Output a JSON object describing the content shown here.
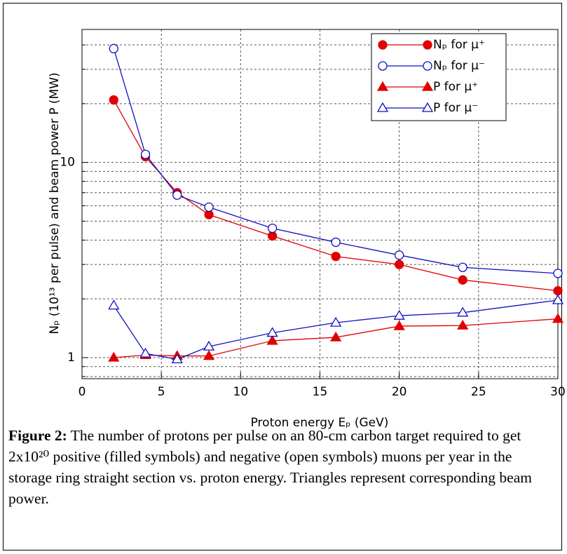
{
  "chart_data": {
    "type": "line",
    "x_label": "Proton energy Eₚ (GeV)",
    "y_label": "Nₚ (10¹³ per pulse) and beam power P (MW)",
    "x": [
      2,
      4,
      6,
      8,
      12,
      16,
      20,
      24,
      30
    ],
    "series": [
      {
        "name": "Nₚ for μ⁺",
        "color": "#e00000",
        "marker": "circle",
        "filled": true,
        "values": [
          20.9,
          10.7,
          7.0,
          5.4,
          4.2,
          3.3,
          3.0,
          2.5,
          2.2
        ]
      },
      {
        "name": "Nₚ for μ⁻",
        "color": "#1010c0",
        "marker": "circle",
        "filled": false,
        "values": [
          38.3,
          11.0,
          6.8,
          5.9,
          4.6,
          3.9,
          3.35,
          2.9,
          2.7
        ]
      },
      {
        "name": "P for μ⁺",
        "color": "#e00000",
        "marker": "triangle",
        "filled": true,
        "values": [
          1.0,
          1.03,
          1.02,
          1.02,
          1.22,
          1.27,
          1.45,
          1.46,
          1.58
        ]
      },
      {
        "name": "P for μ⁻",
        "color": "#1010c0",
        "marker": "triangle",
        "filled": false,
        "values": [
          1.85,
          1.05,
          0.98,
          1.14,
          1.34,
          1.51,
          1.64,
          1.7,
          1.97
        ]
      }
    ],
    "xlim": [
      0,
      30
    ],
    "xticks": [
      0,
      5,
      10,
      15,
      20,
      25,
      30
    ],
    "ylim": [
      0.78,
      48
    ],
    "yticks": [
      1,
      10
    ],
    "y_minor_grid": [
      0.8,
      0.9,
      2,
      3,
      4,
      5,
      6,
      7,
      8,
      9,
      20,
      30,
      40
    ],
    "y_log": true,
    "grid": true,
    "legend": "top-right"
  },
  "caption": {
    "label": "Figure 2:",
    "text": " The number of protons per pulse on an 80-cm carbon target required to get 2x10²⁰ positive (filled symbols) and negative (open symbols) muons per year in the storage ring straight section vs. proton energy. Triangles represent corresponding beam power."
  }
}
